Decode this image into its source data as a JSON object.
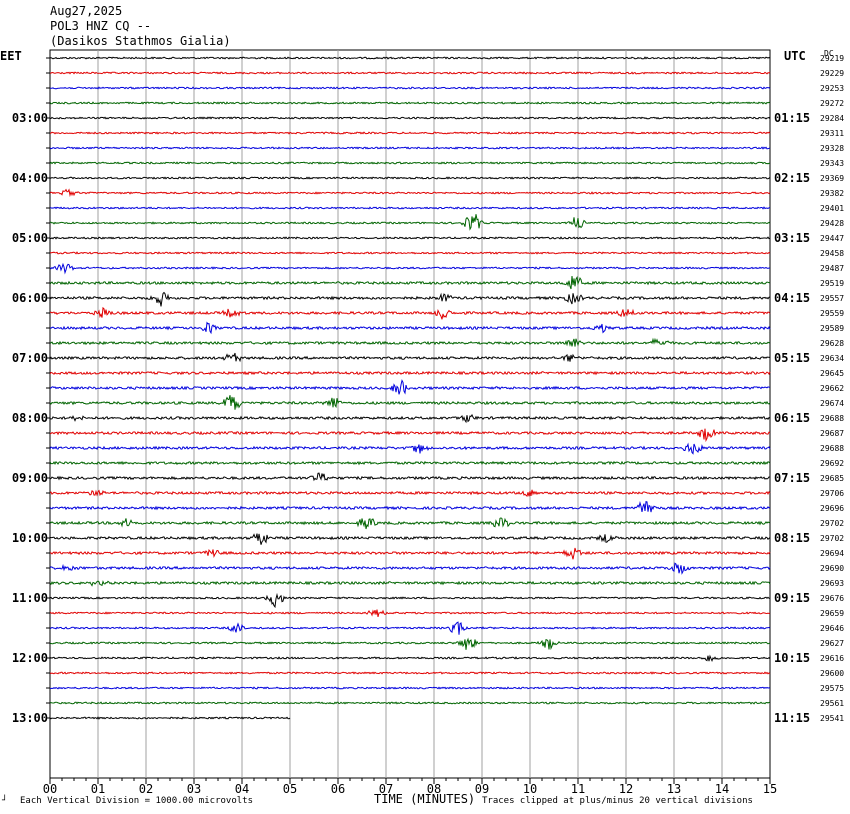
{
  "header": {
    "date": "Aug27,2025",
    "station": "POL3 HNZ CQ --",
    "site": "(Dasikos Stathmos Gialia)"
  },
  "left_tz": "EET",
  "right_tz": "UTC",
  "dc_label": "DC",
  "footer": {
    "vertical_division": "Each Vertical Division = 1000.00 microvolts",
    "xlabel": "TIME (MINUTES)",
    "clip_note": "Traces clipped at plus/minus 20 vertical divisions",
    "corner_mark": "┘"
  },
  "colors": {
    "trace_cycle": [
      "#000000",
      "#e00000",
      "#0000dd",
      "#006400"
    ],
    "grid": "#a0a0a0"
  },
  "chart_data": {
    "type": "line",
    "title": "",
    "xlabel": "TIME (MINUTES)",
    "ylabel": "",
    "xlim": [
      0,
      15
    ],
    "x_ticks": [
      "00",
      "01",
      "02",
      "03",
      "04",
      "05",
      "06",
      "07",
      "08",
      "09",
      "10",
      "11",
      "12",
      "13",
      "14",
      "15"
    ],
    "minutes_per_line": 15,
    "partial_last_line_minutes": 5,
    "left_time_labels": [
      "03:00",
      "04:00",
      "05:00",
      "06:00",
      "07:00",
      "08:00",
      "09:00",
      "10:00",
      "11:00",
      "12:00",
      "13:00"
    ],
    "right_time_labels": [
      "01:15",
      "02:15",
      "03:15",
      "04:15",
      "05:15",
      "06:15",
      "07:15",
      "08:15",
      "09:15",
      "10:15",
      "11:15"
    ],
    "dc_offsets": [
      29219,
      29229,
      29253,
      29272,
      29284,
      29311,
      29328,
      29343,
      29369,
      29382,
      29401,
      29428,
      29447,
      29458,
      29487,
      29519,
      29557,
      29559,
      29589,
      29628,
      29634,
      29645,
      29662,
      29674,
      29688,
      29687,
      29688,
      29692,
      29685,
      29706,
      29696,
      29702,
      29702,
      29694,
      29690,
      29693,
      29676,
      29659,
      29646,
      29627,
      29616,
      29600,
      29575,
      29561,
      29541
    ],
    "events": [
      {
        "line": 9,
        "minute": 0.4,
        "amp": 5
      },
      {
        "line": 11,
        "minute": 8.8,
        "amp": 12
      },
      {
        "line": 11,
        "minute": 11.0,
        "amp": 8
      },
      {
        "line": 14,
        "minute": 0.3,
        "amp": 5
      },
      {
        "line": 15,
        "minute": 10.9,
        "amp": 10
      },
      {
        "line": 16,
        "minute": 2.3,
        "amp": 8
      },
      {
        "line": 16,
        "minute": 8.2,
        "amp": 4
      },
      {
        "line": 16,
        "minute": 10.9,
        "amp": 6
      },
      {
        "line": 17,
        "minute": 1.1,
        "amp": 6
      },
      {
        "line": 17,
        "minute": 3.8,
        "amp": 5
      },
      {
        "line": 17,
        "minute": 8.2,
        "amp": 8
      },
      {
        "line": 17,
        "minute": 12.0,
        "amp": 5
      },
      {
        "line": 18,
        "minute": 3.3,
        "amp": 6
      },
      {
        "line": 18,
        "minute": 11.5,
        "amp": 4
      },
      {
        "line": 19,
        "minute": 10.9,
        "amp": 7
      },
      {
        "line": 19,
        "minute": 12.7,
        "amp": 6
      },
      {
        "line": 20,
        "minute": 3.8,
        "amp": 6
      },
      {
        "line": 20,
        "minute": 10.8,
        "amp": 5
      },
      {
        "line": 22,
        "minute": 7.3,
        "amp": 9
      },
      {
        "line": 23,
        "minute": 3.8,
        "amp": 10
      },
      {
        "line": 23,
        "minute": 5.9,
        "amp": 7
      },
      {
        "line": 24,
        "minute": 0.6,
        "amp": 4
      },
      {
        "line": 24,
        "minute": 8.7,
        "amp": 4
      },
      {
        "line": 25,
        "minute": 13.7,
        "amp": 8
      },
      {
        "line": 26,
        "minute": 7.7,
        "amp": 5
      },
      {
        "line": 26,
        "minute": 13.4,
        "amp": 7
      },
      {
        "line": 28,
        "minute": 5.6,
        "amp": 6
      },
      {
        "line": 29,
        "minute": 1.0,
        "amp": 4
      },
      {
        "line": 29,
        "minute": 10.0,
        "amp": 4
      },
      {
        "line": 30,
        "minute": 12.4,
        "amp": 10
      },
      {
        "line": 31,
        "minute": 1.6,
        "amp": 5
      },
      {
        "line": 31,
        "minute": 6.6,
        "amp": 6
      },
      {
        "line": 31,
        "minute": 9.4,
        "amp": 6
      },
      {
        "line": 32,
        "minute": 4.4,
        "amp": 8
      },
      {
        "line": 32,
        "minute": 11.6,
        "amp": 4
      },
      {
        "line": 33,
        "minute": 3.4,
        "amp": 5
      },
      {
        "line": 33,
        "minute": 10.9,
        "amp": 6
      },
      {
        "line": 34,
        "minute": 0.4,
        "amp": 4
      },
      {
        "line": 34,
        "minute": 13.1,
        "amp": 7
      },
      {
        "line": 35,
        "minute": 1.0,
        "amp": 4
      },
      {
        "line": 36,
        "minute": 4.7,
        "amp": 10
      },
      {
        "line": 37,
        "minute": 6.8,
        "amp": 4
      },
      {
        "line": 38,
        "minute": 3.9,
        "amp": 5
      },
      {
        "line": 38,
        "minute": 8.5,
        "amp": 7
      },
      {
        "line": 39,
        "minute": 8.7,
        "amp": 8
      },
      {
        "line": 39,
        "minute": 10.4,
        "amp": 6
      },
      {
        "line": 40,
        "minute": 13.8,
        "amp": 5
      }
    ]
  }
}
